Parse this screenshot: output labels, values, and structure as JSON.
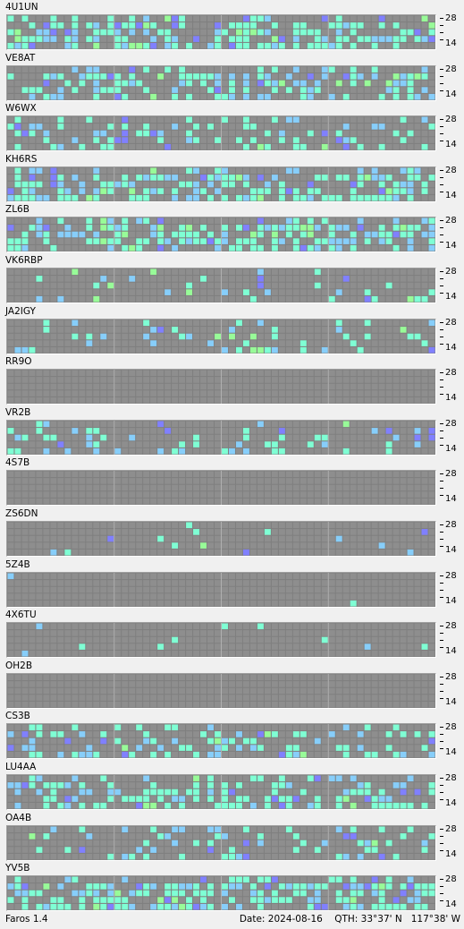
{
  "app": {
    "version_label": "Faros 1.4"
  },
  "status": {
    "date_label": "Date:",
    "date": "2024-08-16",
    "qth_label": "QTH:",
    "lat": "33°37' N",
    "lon": "117°38' W"
  },
  "scale": {
    "top": "28",
    "bottom": "14"
  },
  "colors": {
    "grid_bg": "#7f7f7f",
    "cell_empty": "#8e8e8e",
    "strong": "#7fffd4",
    "medium": "#87cefa",
    "weak": "#8080ff",
    "faint": "#98fb98"
  },
  "stations": [
    {
      "callsign": "4U1UN",
      "activity": 0.55
    },
    {
      "callsign": "VE8AT",
      "activity": 0.45
    },
    {
      "callsign": "W6WX",
      "activity": 0.3
    },
    {
      "callsign": "KH6RS",
      "activity": 0.55
    },
    {
      "callsign": "ZL6B",
      "activity": 0.45
    },
    {
      "callsign": "VK6RBP",
      "activity": 0.15
    },
    {
      "callsign": "JA2IGY",
      "activity": 0.2
    },
    {
      "callsign": "RR9O",
      "activity": 0.0
    },
    {
      "callsign": "VR2B",
      "activity": 0.2
    },
    {
      "callsign": "4S7B",
      "activity": 0.0
    },
    {
      "callsign": "ZS6DN",
      "activity": 0.05
    },
    {
      "callsign": "5Z4B",
      "activity": 0.005
    },
    {
      "callsign": "4X6TU",
      "activity": 0.03
    },
    {
      "callsign": "OH2B",
      "activity": 0.0
    },
    {
      "callsign": "CS3B",
      "activity": 0.3
    },
    {
      "callsign": "LU4AA",
      "activity": 0.45
    },
    {
      "callsign": "OA4B",
      "activity": 0.2
    },
    {
      "callsign": "YV5B",
      "activity": 0.6
    }
  ]
}
